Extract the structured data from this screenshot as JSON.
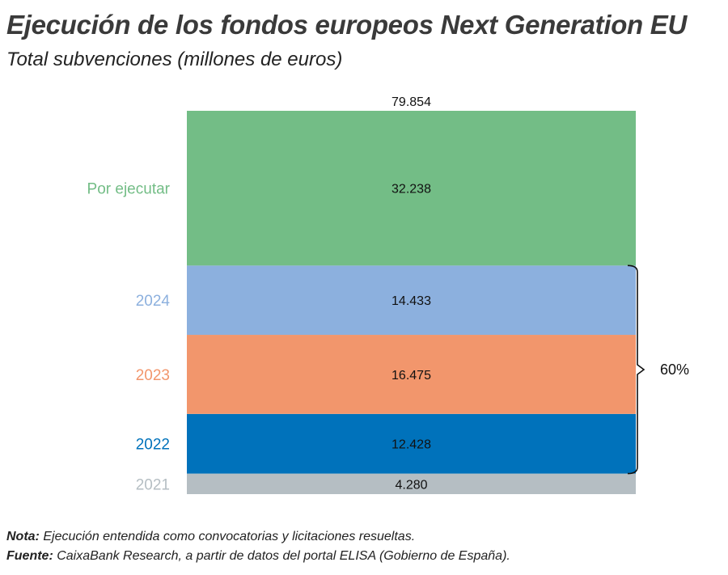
{
  "title": "Ejecución de los fondos europeos Next Generation EU",
  "subtitle": "Total subvenciones (millones de euros)",
  "chart_data": {
    "type": "bar",
    "stacked": true,
    "total_label": "79.854",
    "total": 79854,
    "segments": [
      {
        "name": "2021",
        "value": 4280,
        "label": "4.280",
        "color": "#b5bec3"
      },
      {
        "name": "2022",
        "value": 12428,
        "label": "12.428",
        "color": "#0072bb"
      },
      {
        "name": "2023",
        "value": 16475,
        "label": "16.475",
        "color": "#f2966c"
      },
      {
        "name": "2024",
        "value": 14433,
        "label": "14.433",
        "color": "#8cb0de"
      },
      {
        "name": "Por ejecutar",
        "value": 32238,
        "label": "32.238",
        "color": "#73bd86"
      }
    ],
    "bracket_label": "60%",
    "ylim": [
      0,
      79854
    ]
  },
  "notes": {
    "nota_label": "Nota:",
    "nota_text": " Ejecución entendida como convocatorias y licitaciones resueltas.",
    "fuente_label": "Fuente:",
    "fuente_text": " CaixaBank Research, a partir de datos del portal ELISA (Gobierno de España)."
  }
}
